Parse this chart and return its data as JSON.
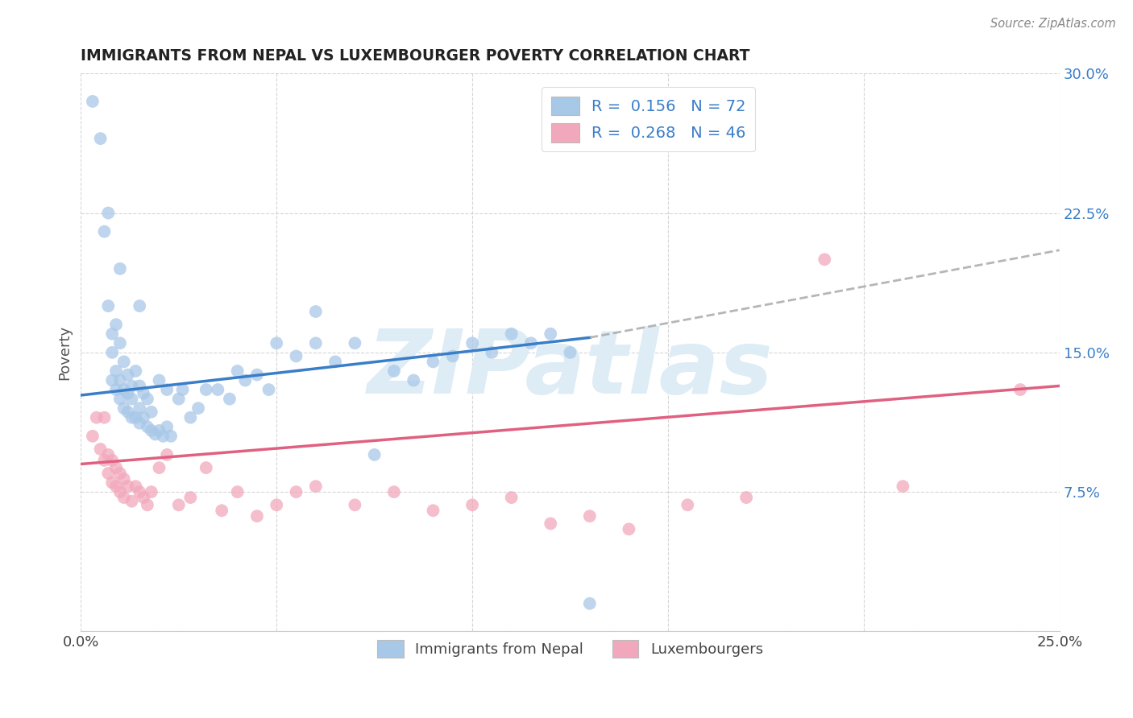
{
  "title": "IMMIGRANTS FROM NEPAL VS LUXEMBOURGER POVERTY CORRELATION CHART",
  "source": "Source: ZipAtlas.com",
  "ylabel": "Poverty",
  "xlim": [
    0.0,
    0.25
  ],
  "ylim": [
    0.0,
    0.3
  ],
  "color_blue": "#a8c8e8",
  "color_pink": "#f2a8bc",
  "color_blue_line": "#3a7ec8",
  "color_pink_line": "#e06080",
  "color_blue_text": "#3a7ec8",
  "color_grey_dash": "#aaaaaa",
  "watermark_text": "ZIPatlas",
  "nepal_x": [
    0.003,
    0.005,
    0.006,
    0.007,
    0.007,
    0.008,
    0.008,
    0.008,
    0.009,
    0.009,
    0.009,
    0.01,
    0.01,
    0.01,
    0.01,
    0.011,
    0.011,
    0.011,
    0.012,
    0.012,
    0.012,
    0.013,
    0.013,
    0.013,
    0.014,
    0.014,
    0.015,
    0.015,
    0.015,
    0.016,
    0.016,
    0.017,
    0.017,
    0.018,
    0.018,
    0.019,
    0.02,
    0.02,
    0.021,
    0.022,
    0.022,
    0.023,
    0.025,
    0.026,
    0.028,
    0.03,
    0.032,
    0.035,
    0.038,
    0.04,
    0.042,
    0.045,
    0.048,
    0.05,
    0.055,
    0.06,
    0.065,
    0.07,
    0.075,
    0.08,
    0.085,
    0.09,
    0.095,
    0.1,
    0.105,
    0.11,
    0.115,
    0.12,
    0.125,
    0.13,
    0.015,
    0.06
  ],
  "nepal_y": [
    0.285,
    0.265,
    0.215,
    0.175,
    0.225,
    0.135,
    0.15,
    0.16,
    0.13,
    0.14,
    0.165,
    0.125,
    0.135,
    0.155,
    0.195,
    0.12,
    0.13,
    0.145,
    0.118,
    0.128,
    0.138,
    0.115,
    0.125,
    0.132,
    0.115,
    0.14,
    0.112,
    0.12,
    0.132,
    0.115,
    0.128,
    0.11,
    0.125,
    0.108,
    0.118,
    0.106,
    0.108,
    0.135,
    0.105,
    0.11,
    0.13,
    0.105,
    0.125,
    0.13,
    0.115,
    0.12,
    0.13,
    0.13,
    0.125,
    0.14,
    0.135,
    0.138,
    0.13,
    0.155,
    0.148,
    0.155,
    0.145,
    0.155,
    0.095,
    0.14,
    0.135,
    0.145,
    0.148,
    0.155,
    0.15,
    0.16,
    0.155,
    0.16,
    0.15,
    0.015,
    0.175,
    0.172
  ],
  "lux_x": [
    0.003,
    0.004,
    0.005,
    0.006,
    0.006,
    0.007,
    0.007,
    0.008,
    0.008,
    0.009,
    0.009,
    0.01,
    0.01,
    0.011,
    0.011,
    0.012,
    0.013,
    0.014,
    0.015,
    0.016,
    0.017,
    0.018,
    0.02,
    0.022,
    0.025,
    0.028,
    0.032,
    0.036,
    0.04,
    0.045,
    0.05,
    0.055,
    0.06,
    0.07,
    0.08,
    0.09,
    0.1,
    0.11,
    0.12,
    0.13,
    0.14,
    0.155,
    0.17,
    0.19,
    0.21,
    0.24
  ],
  "lux_y": [
    0.105,
    0.115,
    0.098,
    0.092,
    0.115,
    0.085,
    0.095,
    0.08,
    0.092,
    0.078,
    0.088,
    0.075,
    0.085,
    0.072,
    0.082,
    0.078,
    0.07,
    0.078,
    0.075,
    0.072,
    0.068,
    0.075,
    0.088,
    0.095,
    0.068,
    0.072,
    0.088,
    0.065,
    0.075,
    0.062,
    0.068,
    0.075,
    0.078,
    0.068,
    0.075,
    0.065,
    0.068,
    0.072,
    0.058,
    0.062,
    0.055,
    0.068,
    0.072,
    0.2,
    0.078,
    0.13
  ],
  "blue_line_x_start": 0.0,
  "blue_line_x_solid_end": 0.13,
  "blue_line_x_dash_end": 0.25,
  "blue_line_y_start": 0.127,
  "blue_line_y_solid_end": 0.158,
  "blue_line_y_dash_end": 0.205,
  "pink_line_x_start": 0.0,
  "pink_line_x_end": 0.25,
  "pink_line_y_start": 0.09,
  "pink_line_y_end": 0.132
}
